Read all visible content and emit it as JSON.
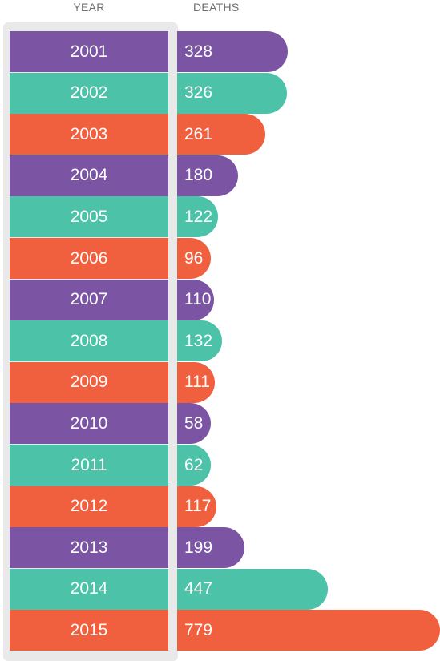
{
  "headers": {
    "year": "YEAR",
    "deaths": "DEATHS"
  },
  "palette": [
    "#7b55a3",
    "#4cc3a9",
    "#f0603f"
  ],
  "chart_data": {
    "type": "bar",
    "orientation": "horizontal",
    "xlabel": "DEATHS",
    "ylabel": "YEAR",
    "categories": [
      "2001",
      "2002",
      "2003",
      "2004",
      "2005",
      "2006",
      "2007",
      "2008",
      "2009",
      "2010",
      "2011",
      "2012",
      "2013",
      "2014",
      "2015"
    ],
    "values": [
      328,
      326,
      261,
      180,
      122,
      96,
      110,
      132,
      111,
      58,
      62,
      117,
      199,
      447,
      779
    ],
    "labels": [
      "328",
      "326",
      "261",
      "180",
      "122",
      "96",
      "110",
      "132",
      "111",
      "58",
      "62",
      "117",
      "199",
      "447",
      "779"
    ]
  }
}
